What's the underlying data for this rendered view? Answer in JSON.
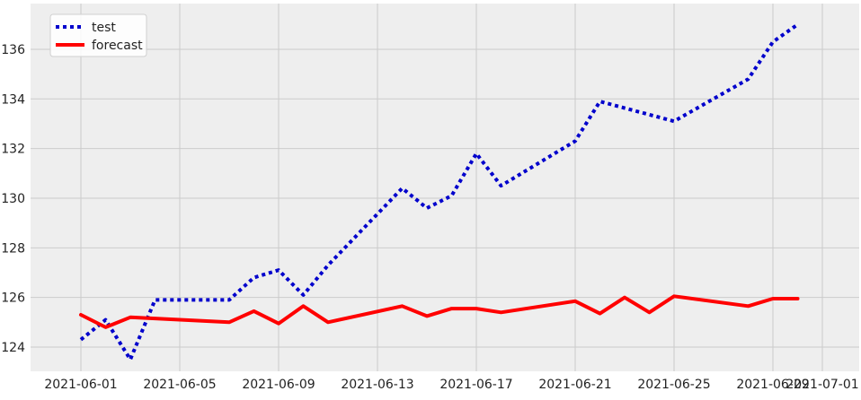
{
  "chart_data": {
    "type": "line",
    "title": "",
    "xlabel": "",
    "ylabel": "",
    "x_ticks": [
      "2021-06-01",
      "2021-06-05",
      "2021-06-09",
      "2021-06-13",
      "2021-06-17",
      "2021-06-21",
      "2021-06-25",
      "2021-06-29",
      "2021-07-01"
    ],
    "y_ticks": [
      124,
      126,
      128,
      130,
      132,
      134,
      136
    ],
    "xlim": [
      "2021-05-30",
      "2021-07-02"
    ],
    "ylim": [
      123.0,
      137.4
    ],
    "grid": true,
    "legend_position": "upper-left",
    "background_color": "#eeeeee",
    "series": [
      {
        "name": "test",
        "color": "#0000cc",
        "style": "dotted",
        "points": [
          [
            "2021-06-01",
            124.3
          ],
          [
            "2021-06-02",
            125.1
          ],
          [
            "2021-06-03",
            123.5
          ],
          [
            "2021-06-04",
            125.9
          ],
          [
            "2021-06-07",
            125.9
          ],
          [
            "2021-06-08",
            126.8
          ],
          [
            "2021-06-09",
            127.1
          ],
          [
            "2021-06-10",
            126.1
          ],
          [
            "2021-06-11",
            127.3
          ],
          [
            "2021-06-14",
            130.4
          ],
          [
            "2021-06-15",
            129.6
          ],
          [
            "2021-06-16",
            130.1
          ],
          [
            "2021-06-17",
            131.8
          ],
          [
            "2021-06-18",
            130.5
          ],
          [
            "2021-06-21",
            132.3
          ],
          [
            "2021-06-22",
            133.9
          ],
          [
            "2021-06-25",
            133.1
          ],
          [
            "2021-06-28",
            134.8
          ],
          [
            "2021-06-29",
            136.3
          ],
          [
            "2021-06-30",
            137.0
          ]
        ]
      },
      {
        "name": "forecast",
        "color": "#ff0000",
        "style": "solid",
        "points": [
          [
            "2021-06-01",
            125.3
          ],
          [
            "2021-06-02",
            124.8
          ],
          [
            "2021-06-03",
            125.2
          ],
          [
            "2021-06-07",
            125.0
          ],
          [
            "2021-06-08",
            125.45
          ],
          [
            "2021-06-09",
            124.95
          ],
          [
            "2021-06-10",
            125.65
          ],
          [
            "2021-06-11",
            125.0
          ],
          [
            "2021-06-14",
            125.65
          ],
          [
            "2021-06-15",
            125.25
          ],
          [
            "2021-06-16",
            125.55
          ],
          [
            "2021-06-17",
            125.55
          ],
          [
            "2021-06-18",
            125.4
          ],
          [
            "2021-06-21",
            125.85
          ],
          [
            "2021-06-22",
            125.35
          ],
          [
            "2021-06-23",
            126.0
          ],
          [
            "2021-06-24",
            125.4
          ],
          [
            "2021-06-25",
            126.05
          ],
          [
            "2021-06-28",
            125.65
          ],
          [
            "2021-06-29",
            125.95
          ],
          [
            "2021-06-30",
            125.95
          ]
        ]
      }
    ]
  }
}
